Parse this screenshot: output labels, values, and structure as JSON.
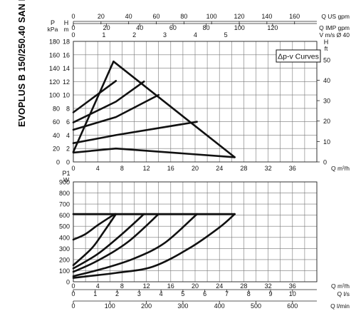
{
  "model_title": "EVOPLUS B 150/250.40 SAN M",
  "legend_label": "Δp-v Curves",
  "chart_data": [
    {
      "type": "line",
      "panel": "head",
      "title": "",
      "xlabel": "Q m³/h",
      "xlim": [
        0,
        40
      ],
      "x_ticks": [
        0,
        4,
        8,
        12,
        16,
        20,
        24,
        28,
        32,
        36
      ],
      "y_left": {
        "label_top": "P",
        "label_unit": "kPa",
        "lim": [
          0,
          180
        ],
        "ticks": [
          0,
          20,
          40,
          60,
          80,
          100,
          120,
          140,
          160,
          180
        ]
      },
      "y_left2": {
        "label_top": "H",
        "label_unit": "m",
        "lim": [
          0,
          18
        ],
        "ticks": [
          0,
          2,
          4,
          6,
          8,
          10,
          12,
          14,
          16,
          18
        ]
      },
      "y_right": {
        "label_top": "H",
        "label_unit": "ft",
        "lim": [
          0,
          59
        ],
        "ticks": [
          0,
          10,
          20,
          30,
          40,
          50
        ]
      },
      "top_axis_usgpm": {
        "label": "Q US gpm",
        "ticks": [
          0,
          20,
          40,
          60,
          80,
          100,
          120,
          140,
          160
        ]
      },
      "top_axis_impgpm": {
        "label": "Q IMP gpm",
        "ticks": [
          0,
          20,
          40,
          60,
          80,
          100,
          120
        ]
      },
      "top_axis_velocity": {
        "label": "V m/s Ø 40",
        "ticks": [
          0,
          1,
          2,
          3,
          4,
          5
        ]
      },
      "grid": true,
      "series": [
        {
          "x": [
            0,
            6.6
          ],
          "y": [
            1.5,
            15
          ]
        },
        {
          "x": [
            6.6,
            26.5
          ],
          "y": [
            15,
            0.7
          ]
        },
        {
          "x": [
            0,
            7,
            26.5
          ],
          "y": [
            1.4,
            2,
            0.7
          ]
        },
        {
          "x": [
            0,
            7,
            20.3
          ],
          "y": [
            2.8,
            4,
            6
          ]
        },
        {
          "x": [
            0,
            7,
            14
          ],
          "y": [
            4.8,
            6.7,
            10
          ]
        },
        {
          "x": [
            0,
            7,
            11.6
          ],
          "y": [
            5.9,
            9,
            12
          ]
        },
        {
          "x": [
            0,
            7
          ],
          "y": [
            7.4,
            12.1
          ]
        }
      ]
    },
    {
      "type": "line",
      "panel": "power",
      "title": "",
      "xlabel": "Q m³/h",
      "xlim": [
        0,
        40
      ],
      "x_ticks": [
        0,
        4,
        8,
        12,
        16,
        20,
        24,
        28,
        32,
        36
      ],
      "y_left": {
        "label_top": "P1",
        "label_unit": "W",
        "lim": [
          0,
          900
        ],
        "ticks": [
          0,
          100,
          200,
          300,
          400,
          500,
          600,
          700,
          800,
          900
        ]
      },
      "bottom_axis_ls": {
        "label": "Q l/s",
        "ticks": [
          0,
          1,
          2,
          3,
          4,
          5,
          6,
          7,
          8,
          9,
          10
        ]
      },
      "bottom_axis_lmin": {
        "label": "Q l/min",
        "ticks": [
          0,
          100,
          200,
          300,
          400,
          500,
          600
        ]
      },
      "grid": true,
      "series": [
        {
          "x": [
            0,
            26.5
          ],
          "y": [
            610,
            610
          ]
        },
        {
          "x": [
            0,
            4,
            7,
            13,
            19,
            24,
            26.5
          ],
          "y": [
            35,
            60,
            80,
            135,
            300,
            490,
            610
          ]
        },
        {
          "x": [
            0,
            5,
            10,
            15,
            20.3
          ],
          "y": [
            50,
            120,
            210,
            350,
            610
          ]
        },
        {
          "x": [
            0,
            4,
            9,
            14
          ],
          "y": [
            90,
            190,
            360,
            610
          ]
        },
        {
          "x": [
            0,
            4,
            8,
            11.6
          ],
          "y": [
            120,
            250,
            430,
            610
          ]
        },
        {
          "x": [
            0,
            3,
            5,
            7
          ],
          "y": [
            150,
            300,
            450,
            610
          ]
        },
        {
          "x": [
            0,
            2,
            4,
            6.8
          ],
          "y": [
            380,
            430,
            510,
            610
          ]
        }
      ]
    }
  ]
}
